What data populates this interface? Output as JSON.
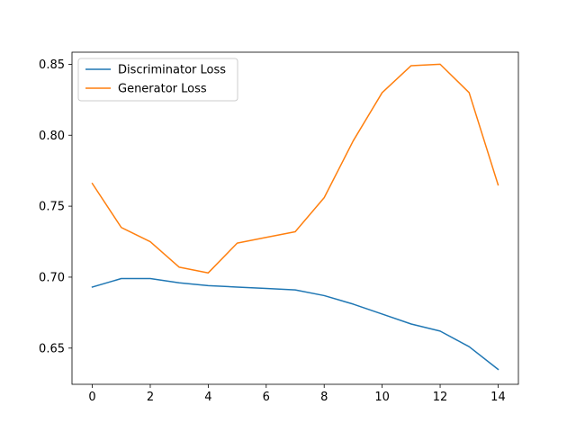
{
  "chart_data": {
    "type": "line",
    "title": "",
    "xlabel": "",
    "ylabel": "",
    "x": [
      0,
      1,
      2,
      3,
      4,
      5,
      6,
      7,
      8,
      9,
      10,
      11,
      12,
      13,
      14
    ],
    "xlim": [
      -0.7,
      14.7
    ],
    "ylim": [
      0.6245,
      0.8585
    ],
    "xticks": [
      0,
      2,
      4,
      6,
      8,
      10,
      12,
      14
    ],
    "yticks": [
      0.65,
      0.7,
      0.75,
      0.8,
      0.85
    ],
    "xtick_labels": [
      "0",
      "2",
      "4",
      "6",
      "8",
      "10",
      "12",
      "14"
    ],
    "ytick_labels": [
      "0.65",
      "0.70",
      "0.75",
      "0.80",
      "0.85"
    ],
    "grid": false,
    "legend_position": "upper-left",
    "series": [
      {
        "name": "Discriminator Loss",
        "color": "#1f77b4",
        "values": [
          0.693,
          0.699,
          0.699,
          0.696,
          0.694,
          0.693,
          0.692,
          0.691,
          0.687,
          0.681,
          0.674,
          0.667,
          0.662,
          0.651,
          0.635
        ]
      },
      {
        "name": "Generator Loss",
        "color": "#ff7f0e",
        "values": [
          0.766,
          0.735,
          0.725,
          0.707,
          0.703,
          0.724,
          0.728,
          0.732,
          0.756,
          0.796,
          0.83,
          0.849,
          0.85,
          0.83,
          0.765
        ]
      }
    ]
  }
}
